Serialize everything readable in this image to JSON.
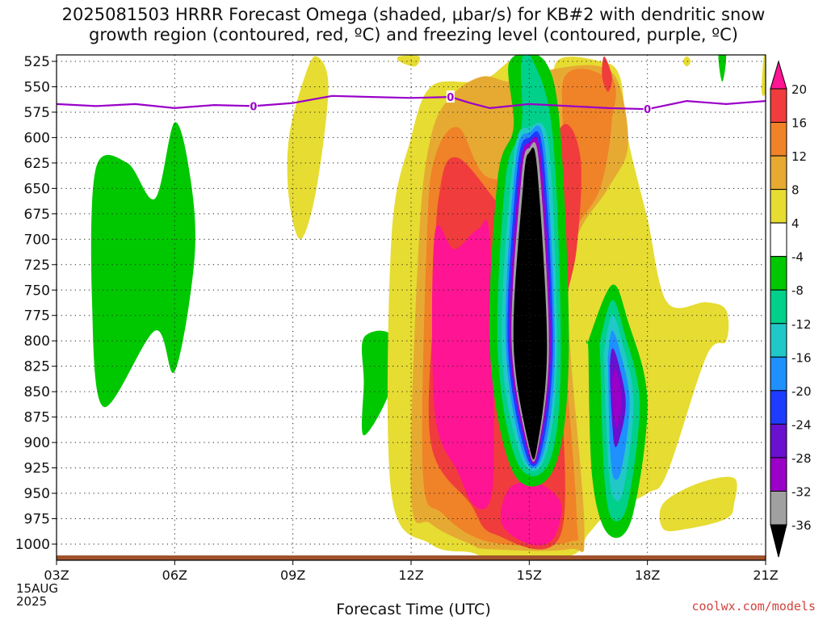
{
  "title_line1": "2025081503 HRRR Forecast Omega (shaded, μbar/s) for KB#2 with dendritic snow",
  "title_line2": "growth region (contoured, red, ºC) and freezing level (contoured, purple, ºC)",
  "watermark": "coolwx.com/models",
  "chart_data": {
    "type": "heatmap",
    "title": "2025081503 HRRR Forecast Omega (shaded, μbar/s) for KB#2 with dendritic snow growth region (contoured, red, ºC) and freezing level (contoured, purple, ºC)",
    "xlabel": "Forecast Time (UTC)",
    "ylabel": "",
    "x_start_label": [
      "03Z",
      "15AUG",
      "2025"
    ],
    "x_ticks": [
      {
        "hour": 3,
        "label": "03Z"
      },
      {
        "hour": 6,
        "label": "06Z"
      },
      {
        "hour": 9,
        "label": "09Z"
      },
      {
        "hour": 12,
        "label": "12Z"
      },
      {
        "hour": 15,
        "label": "15Z"
      },
      {
        "hour": 18,
        "label": "18Z"
      },
      {
        "hour": 21,
        "label": "21Z"
      }
    ],
    "xlim": [
      3,
      21
    ],
    "ylim": [
      1000,
      525
    ],
    "y_ticks": [
      525,
      550,
      575,
      600,
      625,
      650,
      675,
      700,
      725,
      750,
      775,
      800,
      825,
      850,
      875,
      900,
      925,
      950,
      975,
      1000
    ],
    "colorbar": {
      "levels": [
        -36,
        -32,
        -28,
        -24,
        -20,
        -16,
        -12,
        -8,
        -4,
        4,
        8,
        12,
        16,
        20
      ],
      "labels": [
        "20",
        "16",
        "12",
        "8",
        "4",
        "-4",
        "-8",
        "-12",
        "-16",
        "-20",
        "-24",
        "-28",
        "-32",
        "-36"
      ],
      "colors": [
        "#000000",
        "#a0a0a0",
        "#9a00c8",
        "#6a10d0",
        "#1e3cff",
        "#1e90ff",
        "#20c8c8",
        "#00d08a",
        "#00c800",
        "#ffffff",
        "#e6dc32",
        "#e6aa32",
        "#f08228",
        "#f03c3c",
        "#ff1493"
      ]
    },
    "freezing_level": {
      "label": "0",
      "points": [
        [
          3,
          567
        ],
        [
          4,
          569
        ],
        [
          5,
          567
        ],
        [
          6,
          571
        ],
        [
          7,
          568
        ],
        [
          8,
          569
        ],
        [
          9,
          566
        ],
        [
          10,
          559
        ],
        [
          11,
          560
        ],
        [
          12,
          561
        ],
        [
          13,
          560
        ],
        [
          13.5,
          566
        ],
        [
          14,
          571
        ],
        [
          15,
          567
        ],
        [
          16,
          569
        ],
        [
          17,
          571
        ],
        [
          18,
          572
        ],
        [
          19,
          564
        ],
        [
          20,
          567
        ],
        [
          21,
          564
        ]
      ],
      "label_hours": [
        8,
        13,
        18
      ]
    },
    "omega_regions": [
      {
        "level": 4,
        "points": [
          [
            9.2,
            700
          ],
          [
            9.6,
            650
          ],
          [
            9.9,
            550
          ],
          [
            9.6,
            520
          ],
          [
            9.3,
            540
          ],
          [
            8.9,
            600
          ],
          [
            8.9,
            660
          ]
        ]
      },
      {
        "level": -4,
        "points": [
          [
            4.2,
            865
          ],
          [
            5.5,
            790
          ],
          [
            6.0,
            830
          ],
          [
            6.5,
            720
          ],
          [
            6.4,
            640
          ],
          [
            6.0,
            585
          ],
          [
            5.5,
            660
          ],
          [
            4.8,
            625
          ],
          [
            4.0,
            630
          ],
          [
            3.9,
            760
          ]
        ]
      },
      {
        "level": -4,
        "points": [
          [
            10.8,
            893
          ],
          [
            11.5,
            845
          ],
          [
            11.5,
            795
          ],
          [
            10.8,
            797
          ],
          [
            10.8,
            840
          ]
        ]
      },
      {
        "level": 4,
        "points": [
          [
            11.5,
            950
          ],
          [
            12.5,
            1000
          ],
          [
            13.5,
            1008
          ],
          [
            14.0,
            1012
          ],
          [
            16.0,
            1012
          ],
          [
            16.5,
            990
          ],
          [
            17.0,
            970
          ],
          [
            18.0,
            950
          ],
          [
            18.5,
            930
          ],
          [
            19.5,
            815
          ],
          [
            20.0,
            800
          ],
          [
            20.0,
            770
          ],
          [
            19.5,
            762
          ],
          [
            18.5,
            762
          ],
          [
            18.0,
            680
          ],
          [
            17.5,
            600
          ],
          [
            17.3,
            540
          ],
          [
            16.8,
            525
          ],
          [
            15.7,
            525
          ],
          [
            15.6,
            580
          ],
          [
            15.3,
            560
          ],
          [
            14.8,
            525
          ],
          [
            14.5,
            525
          ],
          [
            14.0,
            540
          ],
          [
            13.5,
            545
          ],
          [
            12.5,
            550
          ],
          [
            12.0,
            600
          ],
          [
            11.5,
            700
          ]
        ]
      },
      {
        "level": 4,
        "points": [
          [
            18.4,
            985
          ],
          [
            19.0,
            985
          ],
          [
            20.0,
            975
          ],
          [
            20.2,
            960
          ],
          [
            20.2,
            935
          ],
          [
            19.3,
            940
          ],
          [
            18.4,
            960
          ]
        ]
      },
      {
        "level": 8,
        "points": [
          [
            12.0,
            950
          ],
          [
            12.5,
            980
          ],
          [
            13.5,
            1000
          ],
          [
            14.0,
            1005
          ],
          [
            16.0,
            1005
          ],
          [
            16.4,
            985
          ],
          [
            16.0,
            780
          ],
          [
            16.2,
            700
          ],
          [
            17.0,
            650
          ],
          [
            17.5,
            610
          ],
          [
            17.3,
            550
          ],
          [
            16.8,
            530
          ],
          [
            15.7,
            532
          ],
          [
            14.6,
            545
          ],
          [
            13.8,
            540
          ],
          [
            13.0,
            560
          ],
          [
            12.5,
            600
          ],
          [
            12.2,
            700
          ]
        ]
      },
      {
        "level": 12,
        "points": [
          [
            12.3,
            930
          ],
          [
            12.8,
            970
          ],
          [
            14.0,
            998
          ],
          [
            16.0,
            998
          ],
          [
            16.2,
            970
          ],
          [
            15.9,
            790
          ],
          [
            16.1,
            700
          ],
          [
            16.8,
            650
          ],
          [
            17.1,
            580
          ],
          [
            16.9,
            540
          ],
          [
            15.9,
            540
          ],
          [
            15.7,
            620
          ],
          [
            14.0,
            640
          ],
          [
            13.2,
            590
          ],
          [
            12.6,
            620
          ],
          [
            12.4,
            700
          ]
        ]
      },
      {
        "level": 16,
        "points": [
          [
            12.5,
            900
          ],
          [
            13.5,
            960
          ],
          [
            14.1,
            990
          ],
          [
            15.8,
            990
          ],
          [
            15.8,
            800
          ],
          [
            16.2,
            710
          ],
          [
            16.3,
            620
          ],
          [
            15.8,
            590
          ],
          [
            15.0,
            690
          ],
          [
            13.2,
            620
          ],
          [
            12.7,
            660
          ],
          [
            12.6,
            750
          ]
        ]
      },
      {
        "level": 20,
        "points": [
          [
            12.6,
            870
          ],
          [
            13.2,
            930
          ],
          [
            13.6,
            962
          ],
          [
            14.0,
            958
          ],
          [
            14.1,
            900
          ],
          [
            14.0,
            700
          ],
          [
            13.7,
            690
          ],
          [
            13.1,
            710
          ],
          [
            12.6,
            695
          ]
        ]
      },
      {
        "level": 20,
        "points": [
          [
            14.3,
            980
          ],
          [
            15.0,
            1000
          ],
          [
            15.6,
            995
          ],
          [
            15.8,
            960
          ],
          [
            15.2,
            940
          ],
          [
            14.5,
            945
          ]
        ]
      },
      {
        "level": -4,
        "points": [
          [
            14.0,
            810
          ],
          [
            14.6,
            930
          ],
          [
            15.6,
            928
          ],
          [
            16.0,
            820
          ],
          [
            15.8,
            600
          ],
          [
            15.4,
            525
          ],
          [
            14.5,
            525
          ],
          [
            14.6,
            590
          ],
          [
            14.2,
            640
          ]
        ]
      },
      {
        "level": -8,
        "points": [
          [
            14.2,
            810
          ],
          [
            14.7,
            920
          ],
          [
            15.5,
            920
          ],
          [
            15.8,
            820
          ],
          [
            15.6,
            600
          ],
          [
            15.1,
            525
          ],
          [
            14.8,
            525
          ],
          [
            14.8,
            590
          ],
          [
            14.4,
            640
          ]
        ]
      },
      {
        "level": -12,
        "points": [
          [
            14.3,
            805
          ],
          [
            14.8,
            915
          ],
          [
            15.4,
            915
          ],
          [
            15.7,
            815
          ],
          [
            15.5,
            610
          ],
          [
            15.0,
            590
          ],
          [
            14.6,
            620
          ]
        ]
      },
      {
        "level": -16,
        "points": [
          [
            14.4,
            800
          ],
          [
            14.85,
            912
          ],
          [
            15.35,
            912
          ],
          [
            15.65,
            810
          ],
          [
            15.4,
            610
          ],
          [
            15.0,
            595
          ],
          [
            14.65,
            625
          ]
        ]
      },
      {
        "level": -20,
        "points": [
          [
            14.45,
            800
          ],
          [
            14.9,
            910
          ],
          [
            15.3,
            910
          ],
          [
            15.6,
            805
          ],
          [
            15.35,
            615
          ],
          [
            15.0,
            600
          ],
          [
            14.7,
            630
          ]
        ]
      },
      {
        "level": -28,
        "points": [
          [
            14.5,
            800
          ],
          [
            14.95,
            908
          ],
          [
            15.25,
            908
          ],
          [
            15.55,
            805
          ],
          [
            15.3,
            620
          ],
          [
            15.0,
            605
          ],
          [
            14.75,
            635
          ]
        ]
      },
      {
        "level": -32,
        "points": [
          [
            14.55,
            800
          ],
          [
            14.98,
            906
          ],
          [
            15.22,
            906
          ],
          [
            15.5,
            805
          ],
          [
            15.25,
            625
          ],
          [
            15.0,
            610
          ],
          [
            14.8,
            640
          ]
        ]
      },
      {
        "level": -36,
        "points": [
          [
            14.6,
            800
          ],
          [
            15.0,
            904
          ],
          [
            15.2,
            904
          ],
          [
            15.45,
            805
          ],
          [
            15.2,
            630
          ],
          [
            15.0,
            615
          ],
          [
            14.85,
            645
          ]
        ]
      },
      {
        "level": -4,
        "points": [
          [
            16.5,
            810
          ],
          [
            16.6,
            935
          ],
          [
            17.0,
            990
          ],
          [
            17.6,
            975
          ],
          [
            18.0,
            860
          ],
          [
            17.5,
            780
          ],
          [
            17.1,
            745
          ],
          [
            16.5,
            800
          ]
        ]
      },
      {
        "level": -8,
        "points": [
          [
            16.8,
            815
          ],
          [
            16.9,
            930
          ],
          [
            17.1,
            975
          ],
          [
            17.5,
            960
          ],
          [
            17.8,
            860
          ],
          [
            17.4,
            790
          ],
          [
            17.1,
            760
          ],
          [
            16.8,
            800
          ]
        ]
      },
      {
        "level": -12,
        "points": [
          [
            16.9,
            820
          ],
          [
            17.0,
            920
          ],
          [
            17.15,
            955
          ],
          [
            17.4,
            945
          ],
          [
            17.65,
            860
          ],
          [
            17.35,
            800
          ],
          [
            17.1,
            775
          ],
          [
            16.9,
            810
          ]
        ]
      },
      {
        "level": -16,
        "points": [
          [
            17.0,
            825
          ],
          [
            17.05,
            905
          ],
          [
            17.15,
            935
          ],
          [
            17.35,
            925
          ],
          [
            17.55,
            860
          ],
          [
            17.3,
            810
          ],
          [
            17.1,
            790
          ],
          [
            17.0,
            815
          ]
        ]
      },
      {
        "level": -24,
        "points": [
          [
            17.05,
            835
          ],
          [
            17.15,
            900
          ],
          [
            17.3,
            895
          ],
          [
            17.45,
            860
          ],
          [
            17.25,
            820
          ],
          [
            17.1,
            808
          ]
        ]
      },
      {
        "level": -28,
        "points": [
          [
            17.1,
            845
          ],
          [
            17.2,
            885
          ],
          [
            17.35,
            860
          ],
          [
            17.2,
            828
          ]
        ]
      },
      {
        "level": -4,
        "points": [
          [
            19.9,
            545
          ],
          [
            20.0,
            520
          ],
          [
            19.9,
            500
          ],
          [
            19.8,
            520
          ]
        ]
      },
      {
        "level": 4,
        "points": [
          [
            20.9,
            555
          ],
          [
            21.0,
            555
          ],
          [
            21.0,
            525
          ],
          [
            20.95,
            520
          ]
        ]
      },
      {
        "level": 4,
        "points": [
          [
            11.7,
            525
          ],
          [
            12.1,
            530
          ],
          [
            12.2,
            520
          ],
          [
            11.7,
            520
          ]
        ]
      },
      {
        "level": 4,
        "points": [
          [
            19.0,
            530
          ],
          [
            19.1,
            525
          ],
          [
            19.0,
            520
          ],
          [
            18.9,
            525
          ]
        ]
      },
      {
        "level": 12,
        "points": [
          [
            16.8,
            620
          ],
          [
            17.2,
            560
          ],
          [
            17.0,
            540
          ],
          [
            16.7,
            580
          ]
        ]
      },
      {
        "level": 16,
        "points": [
          [
            17.0,
            555
          ],
          [
            17.1,
            540
          ],
          [
            16.9,
            520
          ],
          [
            16.85,
            540
          ]
        ]
      }
    ]
  }
}
